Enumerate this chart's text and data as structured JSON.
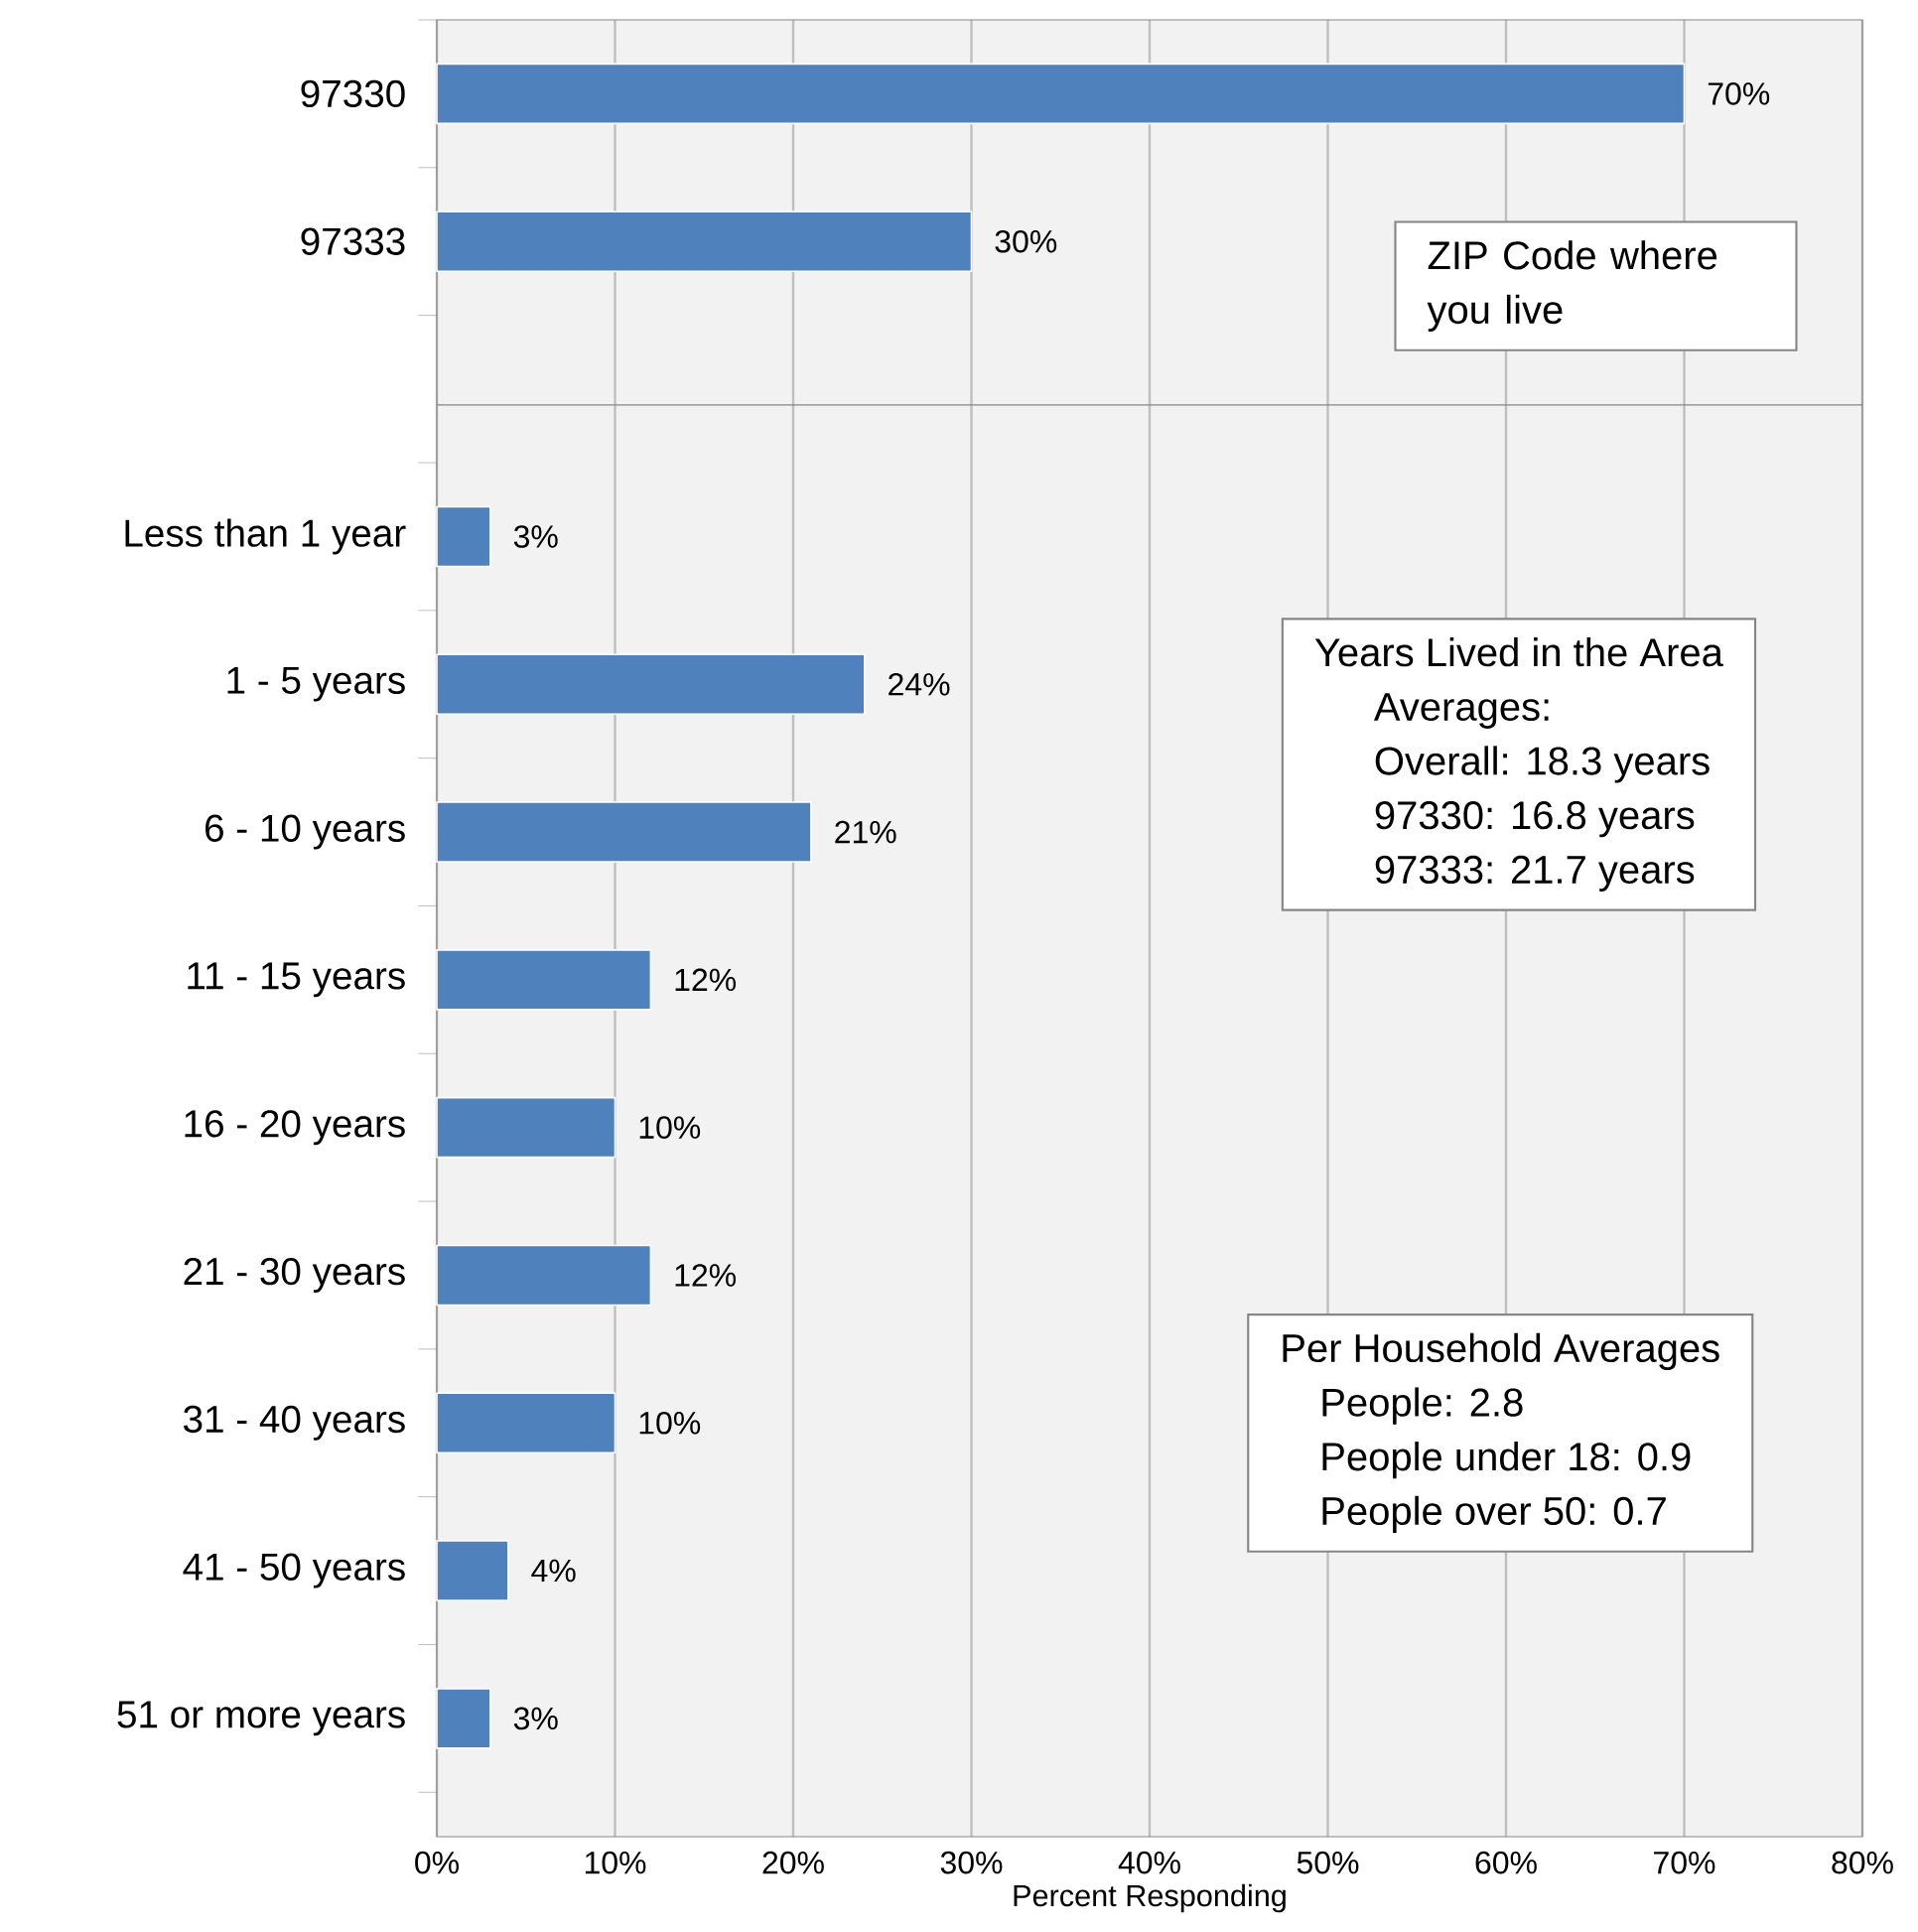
{
  "chart_data": [
    {
      "type": "bar",
      "orientation": "horizontal",
      "color": "#4f81bd",
      "categories": [
        "97330",
        "97333"
      ],
      "values": [
        70,
        30
      ],
      "value_labels": [
        "70%",
        "30%"
      ],
      "xlim": [
        0,
        80
      ],
      "xticks": [
        {
          "value": 0,
          "label": null
        },
        {
          "value": 10,
          "label": null
        },
        {
          "value": 20,
          "label": null
        },
        {
          "value": 30,
          "label": null
        },
        {
          "value": 40,
          "label": null
        },
        {
          "value": 50,
          "label": null
        },
        {
          "value": 60,
          "label": null
        },
        {
          "value": 70,
          "label": null
        },
        {
          "value": 80,
          "label": null
        }
      ],
      "grid": "x",
      "tick_labels": "y",
      "annotations": [
        "ZIP Code where you live"
      ]
    },
    {
      "type": "bar",
      "orientation": "horizontal",
      "color": "#4f81bd",
      "categories": [
        "Less than 1 year",
        "1 - 5 years",
        "6 - 10 years",
        "11 - 15 years",
        "16 - 20 years",
        "21 - 30 years",
        "31 - 40 years",
        "41 - 50 years",
        "51 or more years"
      ],
      "values": [
        3,
        24,
        21,
        12,
        10,
        12,
        10,
        4,
        3
      ],
      "value_labels": [
        "3%",
        "24%",
        "21%",
        "12%",
        "10%",
        "12%",
        "10%",
        "4%",
        "3%"
      ],
      "xlim": [
        0,
        80
      ],
      "xticks": [
        {
          "value": 0,
          "label": "0%"
        },
        {
          "value": 10,
          "label": "10%"
        },
        {
          "value": 20,
          "label": "20%"
        },
        {
          "value": 30,
          "label": "30%"
        },
        {
          "value": 40,
          "label": "40%"
        },
        {
          "value": 50,
          "label": "50%"
        },
        {
          "value": 60,
          "label": "60%"
        },
        {
          "value": 70,
          "label": "70%"
        },
        {
          "value": 80,
          "label": "80%"
        }
      ],
      "grid": "x",
      "xlabel": "Percent Responding",
      "annotations": [
        "Years Lived in the Area",
        "Averages:",
        "Overall:  18.3 years",
        "97330:  16.8 years",
        "97333:  21.7 years",
        "Per Household Averages",
        "People:  2.8",
        "People under 18:  0.9",
        "People over 50:  0.7"
      ]
    }
  ]
}
